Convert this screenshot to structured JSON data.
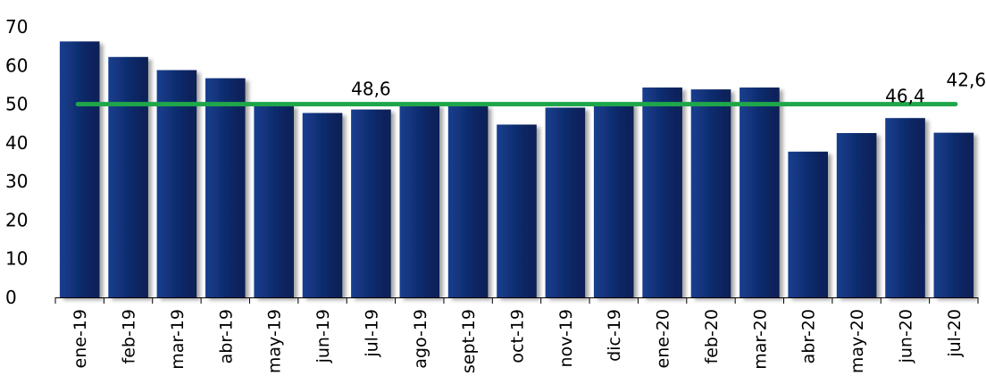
{
  "chart_data": {
    "type": "bar",
    "title": "",
    "xlabel": "",
    "ylabel": "",
    "categories": [
      "ene-19",
      "feb-19",
      "mar-19",
      "abr-19",
      "may-19",
      "jun-19",
      "jul-19",
      "ago-19",
      "sept-19",
      "oct-19",
      "nov-19",
      "dic-19",
      "ene-20",
      "feb-20",
      "mar-20",
      "abr-20",
      "may-20",
      "jun-20",
      "jul-20"
    ],
    "series": [
      {
        "values": [
          66.2,
          62.2,
          58.8,
          56.7,
          49.7,
          47.7,
          48.6,
          49.9,
          49.7,
          44.7,
          49.1,
          50.4,
          54.3,
          53.8,
          54.3,
          37.7,
          42.5,
          46.4,
          42.6
        ]
      }
    ],
    "reference_line": {
      "value": 50,
      "color": "#1fa64a"
    },
    "data_labels": [
      {
        "category": "jul-19",
        "text": "48,6"
      },
      {
        "category": "jun-20",
        "text": "46,4"
      },
      {
        "category": "jul-20",
        "text": "42,6"
      }
    ],
    "yticks": [
      "0",
      "10",
      "20",
      "30",
      "40",
      "50",
      "60",
      "70"
    ],
    "ylim": [
      0,
      70
    ],
    "bar_color": "#0c2a6b",
    "grid": false,
    "legend": "none"
  }
}
